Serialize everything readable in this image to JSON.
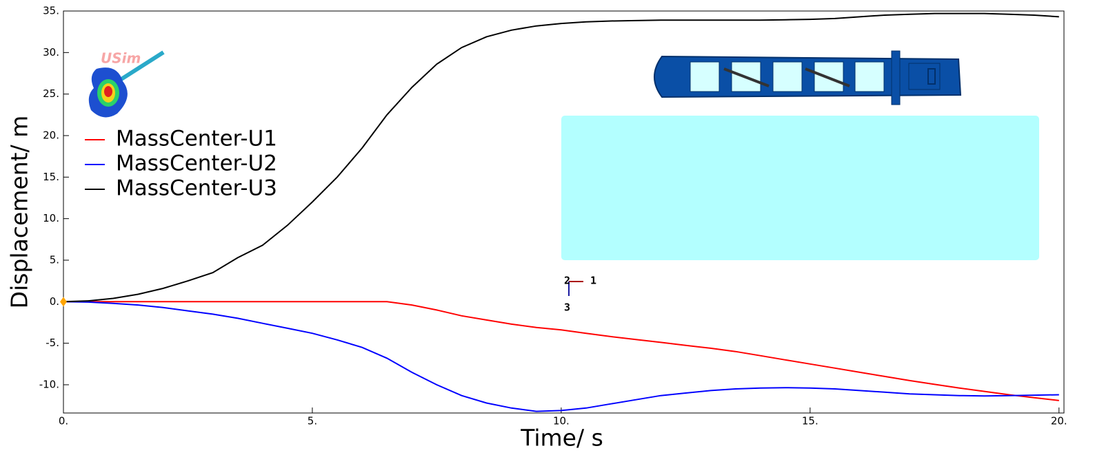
{
  "chart_data": {
    "type": "line",
    "xlabel": "Time/ s",
    "ylabel": "Displacement/ m",
    "x": [
      0,
      0.5,
      1,
      1.5,
      2,
      2.5,
      3,
      3.5,
      4,
      4.5,
      5,
      5.5,
      6,
      6.5,
      7,
      7.5,
      8,
      8.5,
      9,
      9.5,
      10,
      10.5,
      11,
      11.5,
      12,
      12.5,
      13,
      13.5,
      14,
      14.5,
      15,
      15.5,
      16,
      16.5,
      17,
      17.5,
      18,
      18.5,
      19,
      19.5,
      20
    ],
    "series": [
      {
        "name": "MassCenter-U1",
        "color": "#ff0000",
        "values": [
          0,
          0,
          0,
          0,
          0,
          0,
          0,
          0,
          0,
          0,
          0,
          0,
          0,
          0,
          -0.4,
          -1.0,
          -1.7,
          -2.2,
          -2.7,
          -3.1,
          -3.4,
          -3.8,
          -4.2,
          -4.55,
          -4.9,
          -5.25,
          -5.6,
          -6.0,
          -6.5,
          -7.0,
          -7.5,
          -8.0,
          -8.5,
          -9.0,
          -9.5,
          -9.95,
          -10.4,
          -10.8,
          -11.2,
          -11.55,
          -11.9
        ]
      },
      {
        "name": "MassCenter-U2",
        "color": "#0000ff",
        "values": [
          0,
          -0.05,
          -0.2,
          -0.4,
          -0.7,
          -1.1,
          -1.5,
          -2.0,
          -2.6,
          -3.2,
          -3.8,
          -4.6,
          -5.5,
          -6.8,
          -8.5,
          -10.0,
          -11.3,
          -12.2,
          -12.8,
          -13.2,
          -13.1,
          -12.8,
          -12.3,
          -11.8,
          -11.3,
          -11.0,
          -10.7,
          -10.5,
          -10.4,
          -10.35,
          -10.4,
          -10.5,
          -10.7,
          -10.9,
          -11.1,
          -11.2,
          -11.3,
          -11.35,
          -11.3,
          -11.25,
          -11.2
        ]
      },
      {
        "name": "MassCenter-U3",
        "color": "#000000",
        "values": [
          0,
          0.1,
          0.4,
          0.9,
          1.6,
          2.5,
          3.5,
          5.3,
          6.8,
          9.2,
          12,
          15,
          18.5,
          22.5,
          25.8,
          28.6,
          30.6,
          31.9,
          32.7,
          33.2,
          33.5,
          33.7,
          33.8,
          33.85,
          33.9,
          33.9,
          33.9,
          33.9,
          33.9,
          33.95,
          34.0,
          34.1,
          34.3,
          34.5,
          34.6,
          34.7,
          34.7,
          34.7,
          34.6,
          34.5,
          34.3
        ]
      }
    ],
    "xlim": [
      0,
      20.1
    ],
    "ylim": [
      -13.4,
      35
    ],
    "xticks": [
      {
        "value": 0,
        "label": "0."
      },
      {
        "value": 5,
        "label": "5."
      },
      {
        "value": 10,
        "label": "10."
      },
      {
        "value": 15,
        "label": "15."
      },
      {
        "value": 20,
        "label": "20."
      }
    ],
    "yticks": [
      {
        "value": -10,
        "label": "-10."
      },
      {
        "value": -5,
        "label": "-5."
      },
      {
        "value": 0,
        "label": "0."
      },
      {
        "value": 5,
        "label": "5."
      },
      {
        "value": 10,
        "label": "10."
      },
      {
        "value": 15,
        "label": "15."
      },
      {
        "value": 20,
        "label": "20."
      },
      {
        "value": 25,
        "label": "25."
      },
      {
        "value": 30,
        "label": "30."
      },
      {
        "value": 35,
        "label": "35."
      }
    ],
    "legend": "upper left",
    "logo_text": "USim",
    "triad_labels": [
      "1",
      "2",
      "3"
    ]
  }
}
